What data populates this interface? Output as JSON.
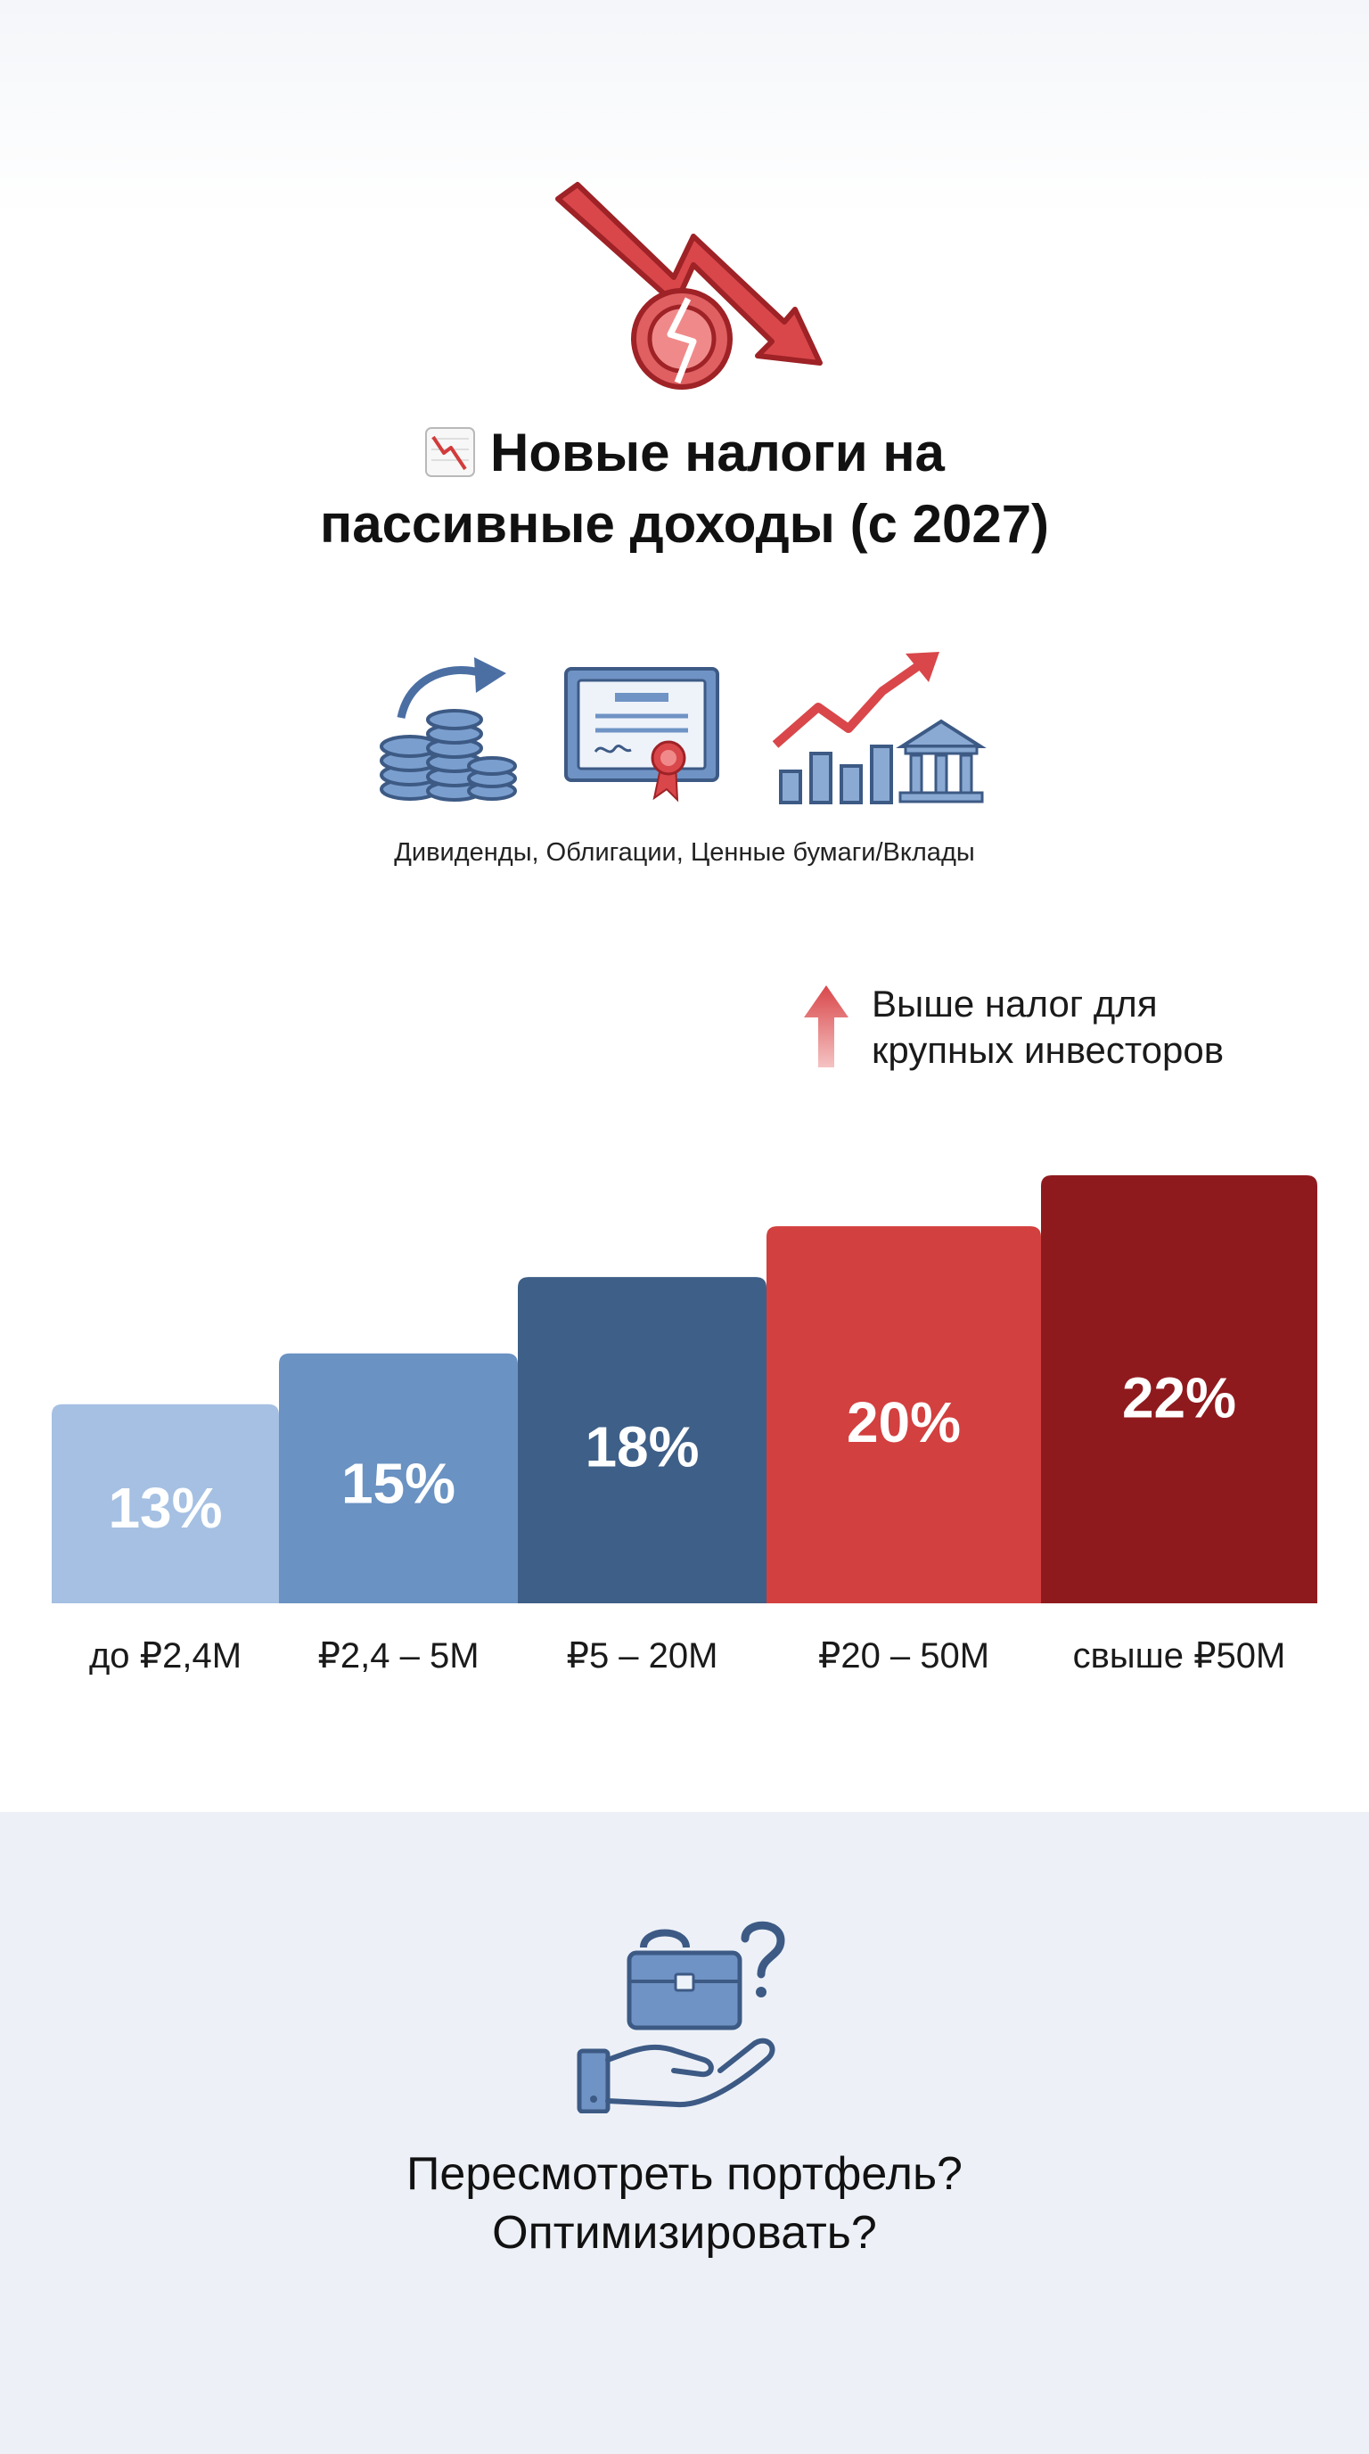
{
  "header": {
    "title_line1": "Новые налоги на",
    "title_line2": "пассивные доходы (с 2027)",
    "caption": "Дивиденды, Облигации, Ценные бумаги/Вклады",
    "icons": [
      "falling-arrow-broken-coin-icon",
      "chart-down-emoji-icon",
      "coins-stack-icon",
      "certificate-icon",
      "growth-chart-bank-icon"
    ]
  },
  "note": {
    "line1": "Выше налог для",
    "line2": "крупных инвесторов",
    "icon": "arrow-up-icon"
  },
  "chart_data": {
    "type": "bar",
    "categories": [
      "до ₽2,4М",
      "₽2,4 – 5М",
      "₽5 – 20М",
      "₽20 – 50М",
      "свыше ₽50М"
    ],
    "values": [
      13,
      15,
      18,
      20,
      22
    ],
    "value_labels": [
      "13%",
      "15%",
      "18%",
      "20%",
      "22%"
    ],
    "colors": [
      "#a5c0e2",
      "#6a92c2",
      "#3e5f87",
      "#d2403f",
      "#8f1a1e"
    ],
    "title": "",
    "xlabel": "",
    "ylabel": "",
    "ylim": [
      0,
      22
    ],
    "grid": false,
    "legend": "none"
  },
  "footer": {
    "line1": "Пересмотреть портфель?",
    "line2": "Оптимизировать?",
    "icon": "hand-briefcase-question-icon"
  }
}
